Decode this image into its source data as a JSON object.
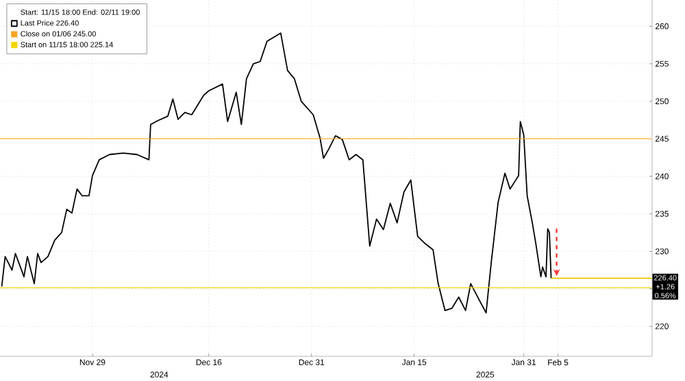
{
  "chart_data": {
    "type": "line",
    "legend_title": "Start: 11/15 18:00 End: 02/11 19:00",
    "series": [
      {
        "name": "Last Price 226.40",
        "color": "#000000",
        "x": [
          "2024-11-15T18:00",
          "2024-11-16T06:00",
          "2024-11-17T06:00",
          "2024-11-17T18:00",
          "2024-11-19T00:00",
          "2024-11-19T12:00",
          "2024-11-20T12:00",
          "2024-11-21T00:00",
          "2024-11-21T12:00",
          "2024-11-22T12:00",
          "2024-11-23T12:00",
          "2024-11-24T12:00",
          "2024-11-25T06:00",
          "2024-11-26T00:00",
          "2024-11-26T18:00",
          "2024-11-27T12:00",
          "2024-11-28T12:00",
          "2024-11-29T00:00",
          "2024-11-30T00:00",
          "2024-12-01T12:00",
          "2024-12-03T12:00",
          "2024-12-05T12:00",
          "2024-12-07T06:00",
          "2024-12-07T12:00",
          "2024-12-08T12:00",
          "2024-12-10T00:00",
          "2024-12-10T18:00",
          "2024-12-11T12:00",
          "2024-12-12T12:00",
          "2024-12-13T12:00",
          "2024-12-15T06:00",
          "2024-12-16T00:00",
          "2024-12-18T00:00",
          "2024-12-18T18:00",
          "2024-12-20T00:00",
          "2024-12-20T18:00",
          "2024-12-21T12:00",
          "2024-12-22T12:00",
          "2024-12-23T12:00",
          "2024-12-24T12:00",
          "2024-12-26T12:00",
          "2024-12-27T12:00",
          "2024-12-28T12:00",
          "2024-12-29T12:00",
          "2024-12-31T06:00",
          "2025-01-01T06:00",
          "2025-01-01T18:00",
          "2025-01-02T12:00",
          "2025-01-03T12:00",
          "2025-01-04T12:00",
          "2025-01-05T12:00",
          "2025-01-06T12:00",
          "2025-01-07T12:00",
          "2025-01-08T12:00",
          "2025-01-09T12:00",
          "2025-01-10T12:00",
          "2025-01-11T12:00",
          "2025-01-12T12:00",
          "2025-01-13T12:00",
          "2025-01-14T12:00",
          "2025-01-15T12:00",
          "2025-01-16T12:00",
          "2025-01-17T18:00",
          "2025-01-18T12:00",
          "2025-01-19T12:00",
          "2025-01-20T12:00",
          "2025-01-21T12:00",
          "2025-01-22T12:00",
          "2025-01-23T06:00",
          "2025-01-24T12:00",
          "2025-01-25T12:00",
          "2025-01-26T06:00",
          "2025-01-27T06:00",
          "2025-01-28T06:00",
          "2025-01-29T00:00",
          "2025-01-30T06:00",
          "2025-01-30T12:00",
          "2025-01-31T00:00",
          "2025-01-31T12:00",
          "2025-02-01T06:00",
          "2025-02-01T18:00",
          "2025-02-02T12:00",
          "2025-02-02T18:00",
          "2025-02-03T06:00",
          "2025-02-03T12:00",
          "2025-02-03T18:00",
          "2025-02-04T00:00"
        ],
        "values": [
          225.3,
          229.3,
          227.5,
          229.7,
          226.6,
          229.3,
          225.7,
          229.7,
          228.5,
          229.3,
          231.5,
          232.5,
          235.6,
          235.1,
          238.3,
          237.4,
          237.4,
          240.1,
          242.2,
          242.9,
          243.1,
          242.9,
          242.2,
          246.9,
          247.4,
          248.0,
          250.3,
          247.6,
          248.5,
          248.2,
          250.8,
          251.4,
          252.3,
          247.3,
          251.2,
          246.9,
          253.0,
          255.0,
          255.3,
          258.0,
          259.1,
          254.1,
          253.0,
          250.0,
          248.2,
          245.1,
          242.4,
          243.6,
          245.4,
          244.9,
          242.2,
          242.9,
          242.2,
          230.7,
          234.3,
          232.9,
          236.4,
          233.8,
          237.9,
          239.5,
          232.0,
          231.1,
          230.2,
          225.7,
          222.1,
          222.4,
          223.9,
          222.1,
          225.7,
          223.5,
          221.8,
          228.5,
          236.5,
          240.4,
          238.3,
          240.1,
          247.3,
          245.5,
          237.4,
          233.8,
          231.1,
          226.6,
          227.9,
          226.6,
          233.0,
          232.5,
          226.4
        ]
      },
      {
        "color": "#f2c500",
        "x": [
          "2025-02-04T00:00",
          "2025-02-18T18:00"
        ],
        "values": [
          226.4,
          226.4
        ]
      }
    ],
    "ref_lines": [
      {
        "axis": "y",
        "value": 245.0,
        "label": "Close on 01/06 245.00",
        "color": "#f5a623"
      },
      {
        "axis": "y",
        "value": 225.14,
        "label": "Start on 11/15 18:00 225.14",
        "color": "#f2d600"
      }
    ],
    "annotations": [
      "2024",
      "2025",
      {
        "text": "226.40",
        "x": "2025-02-18T18:00",
        "y": 226.4
      },
      "+1.26",
      "0.56%"
    ],
    "xlim": [
      "2024-11-15T12:00",
      "2025-02-18T18:00"
    ],
    "xticks": [
      {
        "value": "2024-11-29",
        "label": "Nov 29"
      },
      {
        "value": "2024-12-16",
        "label": "Dec 16"
      },
      {
        "value": "2024-12-31",
        "label": "Dec 31"
      },
      {
        "value": "2025-01-15",
        "label": "Jan 15"
      },
      {
        "value": "2025-01-31",
        "label": "Jan 31"
      },
      {
        "value": "2025-02-05",
        "label": "Feb 5"
      }
    ],
    "ylim": [
      216,
      263.5
    ],
    "yticks": [
      220,
      {
        "value": 225,
        "label": null
      },
      230,
      235,
      240,
      245,
      250,
      255,
      260
    ],
    "grid": true,
    "legend": "top left",
    "line_style": "solid",
    "marker": "none"
  }
}
